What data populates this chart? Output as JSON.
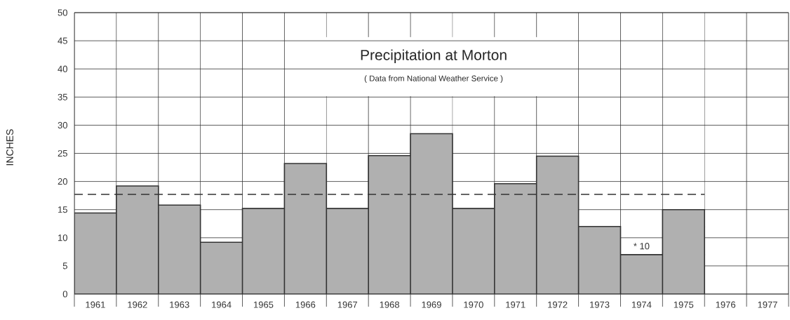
{
  "chart_data": {
    "type": "bar",
    "title": "Precipitation at Morton",
    "subtitle": "( Data from National Weather Service )",
    "ylabel": "INCHES",
    "categories": [
      "1961",
      "1962",
      "1963",
      "1964",
      "1965",
      "1966",
      "1967",
      "1968",
      "1969",
      "1970",
      "1971",
      "1972",
      "1973",
      "1974",
      "1975",
      "1976",
      "1977"
    ],
    "values": [
      14.4,
      19.2,
      15.8,
      9.2,
      15.2,
      23.2,
      15.2,
      24.6,
      28.5,
      15.2,
      19.6,
      24.5,
      12.0,
      7.0,
      15.0,
      null,
      null
    ],
    "color": "#b0b0b0",
    "ylim": [
      0,
      50
    ],
    "yticks": [
      0,
      5,
      10,
      15,
      20,
      25,
      30,
      35,
      40,
      45,
      50
    ],
    "grid": true,
    "ref_lines": [
      {
        "axis": "y",
        "value": 17.7,
        "line_style": "dashed",
        "color": "#333333"
      }
    ],
    "annotations": [
      {
        "text": "* 10",
        "x": "1974",
        "y": 7.0
      }
    ]
  }
}
